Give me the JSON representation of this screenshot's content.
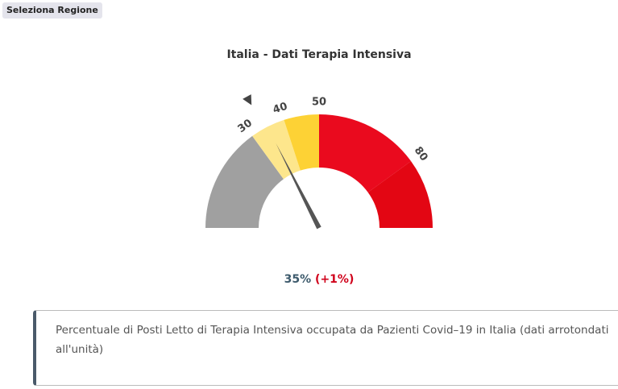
{
  "button": {
    "label": "Seleziona Regione"
  },
  "chart_data": {
    "type": "gauge",
    "title": "Italia - Dati Terapia Intensiva",
    "lim": [
      0,
      100
    ],
    "bands": [
      {
        "from": 0,
        "to": 30,
        "color": "#a0a0a0"
      },
      {
        "from": 30,
        "to": 40,
        "color": "#fde68c"
      },
      {
        "from": 40,
        "to": 50,
        "color": "#fdd235"
      },
      {
        "from": 50,
        "to": 80,
        "color": "#ea0a1e"
      },
      {
        "from": 80,
        "to": 100,
        "color": "#e30613"
      }
    ],
    "ticks": [
      30,
      40,
      50,
      80
    ],
    "value": 35,
    "value_label": "35%",
    "change": 1,
    "change_label": "(+1%)",
    "previous": 34,
    "needle_color": "#555555",
    "marker_color": "#444444"
  },
  "note": "Percentuale di Posti Letto di Terapia Intensiva occupata da Pazienti Covid–19 in Italia (dati arrotondati all'unità)"
}
